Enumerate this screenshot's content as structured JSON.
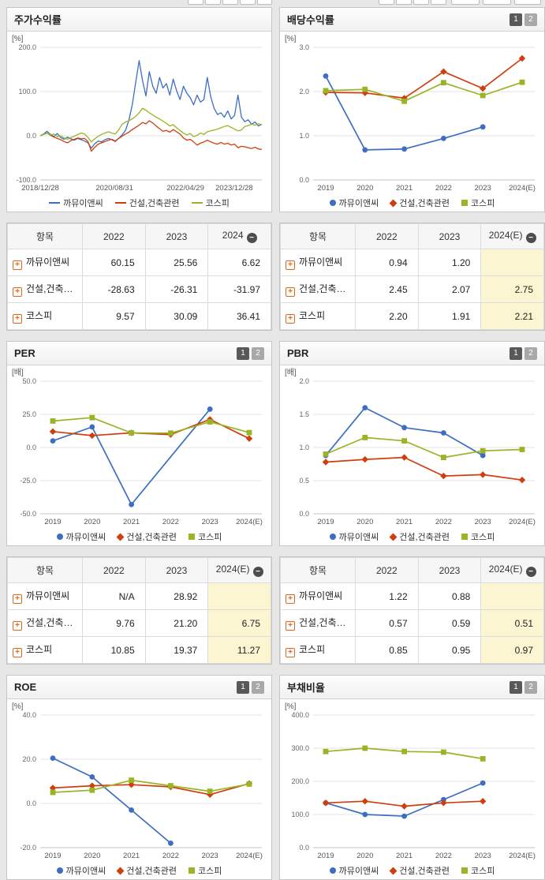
{
  "colors": {
    "blue": "#3d6ec2",
    "red": "#cf3e0f",
    "green": "#99b424",
    "estimate_bg": "#fbf5d2"
  },
  "icons": {
    "expand": "+",
    "collapse": "−"
  },
  "series_names": [
    "까뮤이앤씨",
    "건설,건축관련",
    "코스피"
  ],
  "chart_data": [
    {
      "id": "price-return",
      "type": "line",
      "title": "주가수익률",
      "unit": "[%]",
      "toggles": null,
      "x_tick_labels": [
        "2018/12/28",
        "2020/08/31",
        "2022/04/29",
        "2023/12/28"
      ],
      "x_tick_pos": [
        0,
        0.335,
        0.655,
        0.875
      ],
      "ylim": [
        -100,
        200
      ],
      "yticks": [
        200,
        100,
        0,
        -100
      ],
      "grid": true,
      "legend_position": "bottom",
      "series": [
        {
          "name": "까뮤이앤씨",
          "color": "blue",
          "marker": "none",
          "values": [
            0,
            4,
            10,
            3,
            -2,
            5,
            -4,
            -8,
            -3,
            -7,
            -10,
            -6,
            -9,
            -12,
            -16,
            -28,
            -18,
            -12,
            -14,
            -9,
            -6,
            -9,
            -13,
            -6,
            2,
            12,
            35,
            70,
            120,
            170,
            125,
            90,
            145,
            112,
            96,
            132,
            108,
            118,
            92,
            128,
            102,
            82,
            112,
            96,
            86,
            70,
            92,
            76,
            82,
            132,
            88,
            62,
            48,
            52,
            42,
            56,
            38,
            46,
            92,
            42,
            32,
            36,
            26,
            31,
            22,
            26
          ]
        },
        {
          "name": "건설,건축관련",
          "color": "red",
          "marker": "none",
          "values": [
            0,
            3,
            6,
            1,
            -3,
            -6,
            -9,
            -13,
            -16,
            -11,
            -8,
            -5,
            -7,
            -6,
            -13,
            -35,
            -26,
            -19,
            -16,
            -13,
            -10,
            -8,
            -12,
            -6,
            -1,
            4,
            8,
            14,
            19,
            24,
            30,
            27,
            34,
            29,
            22,
            16,
            10,
            12,
            8,
            14,
            9,
            4,
            -5,
            -10,
            -8,
            -14,
            -21,
            -17,
            -14,
            -10,
            -14,
            -17,
            -19,
            -15,
            -19,
            -17,
            -21,
            -19,
            -27,
            -24,
            -25,
            -27,
            -29,
            -26,
            -30,
            -31
          ]
        },
        {
          "name": "코스피",
          "color": "green",
          "marker": "none",
          "values": [
            0,
            3,
            6,
            2,
            4,
            -2,
            0,
            -5,
            -8,
            -4,
            -1,
            3,
            6,
            4,
            -4,
            -14,
            -7,
            -1,
            3,
            6,
            9,
            6,
            4,
            13,
            26,
            31,
            34,
            38,
            44,
            52,
            62,
            58,
            52,
            47,
            42,
            38,
            33,
            28,
            22,
            25,
            18,
            12,
            6,
            2,
            5,
            -2,
            1,
            6,
            3,
            9,
            11,
            13,
            15,
            18,
            21,
            23,
            19,
            15,
            11,
            13,
            21,
            23,
            26,
            24,
            27,
            25
          ]
        }
      ]
    },
    {
      "id": "dividend-yield",
      "type": "line",
      "title": "배당수익률",
      "unit": "[%]",
      "toggles": [
        "1",
        "2"
      ],
      "categories": [
        "2019",
        "2020",
        "2021",
        "2022",
        "2023",
        "2024(E)"
      ],
      "ylim": [
        0,
        3
      ],
      "yticks": [
        3,
        2,
        1,
        0
      ],
      "grid": true,
      "legend_position": "bottom",
      "series": [
        {
          "name": "까뮤이앤씨",
          "color": "blue",
          "marker": "circle",
          "values": [
            2.35,
            0.68,
            0.7,
            0.94,
            1.2,
            null
          ]
        },
        {
          "name": "건설,건축관련",
          "color": "red",
          "marker": "diamond",
          "values": [
            1.98,
            1.97,
            1.85,
            2.45,
            2.07,
            2.75
          ]
        },
        {
          "name": "코스피",
          "color": "green",
          "marker": "square",
          "values": [
            2.02,
            2.05,
            1.78,
            2.2,
            1.91,
            2.21
          ]
        }
      ]
    },
    {
      "id": "per",
      "type": "line",
      "title": "PER",
      "unit": "[배]",
      "toggles": [
        "1",
        "2"
      ],
      "categories": [
        "2019",
        "2020",
        "2021",
        "2022",
        "2023",
        "2024(E)"
      ],
      "ylim": [
        -50,
        50
      ],
      "yticks": [
        50,
        25,
        0,
        -25,
        -50
      ],
      "grid": true,
      "legend_position": "bottom",
      "series": [
        {
          "name": "까뮤이앤씨",
          "color": "blue",
          "marker": "circle",
          "values": [
            5,
            15.5,
            -43,
            null,
            28.92,
            null
          ]
        },
        {
          "name": "건설,건축관련",
          "color": "red",
          "marker": "diamond",
          "values": [
            12,
            9,
            11,
            9.76,
            21.2,
            6.75
          ]
        },
        {
          "name": "코스피",
          "color": "green",
          "marker": "square",
          "values": [
            20,
            22.5,
            11,
            10.85,
            19.37,
            11.27
          ]
        }
      ]
    },
    {
      "id": "pbr",
      "type": "line",
      "title": "PBR",
      "unit": "[배]",
      "toggles": [
        "1",
        "2"
      ],
      "categories": [
        "2019",
        "2020",
        "2021",
        "2022",
        "2023",
        "2024(E)"
      ],
      "ylim": [
        0,
        2
      ],
      "yticks": [
        2,
        1.5,
        1,
        0.5,
        0
      ],
      "grid": true,
      "legend_position": "bottom",
      "series": [
        {
          "name": "까뮤이앤씨",
          "color": "blue",
          "marker": "circle",
          "values": [
            0.88,
            1.6,
            1.3,
            1.22,
            0.88,
            null
          ]
        },
        {
          "name": "건설,건축관련",
          "color": "red",
          "marker": "diamond",
          "values": [
            0.78,
            0.82,
            0.85,
            0.57,
            0.59,
            0.51
          ]
        },
        {
          "name": "코스피",
          "color": "green",
          "marker": "square",
          "values": [
            0.9,
            1.15,
            1.1,
            0.85,
            0.95,
            0.97
          ]
        }
      ]
    },
    {
      "id": "roe",
      "type": "line",
      "title": "ROE",
      "unit": "[%]",
      "toggles": [
        "1",
        "2"
      ],
      "categories": [
        "2019",
        "2020",
        "2021",
        "2022",
        "2023",
        "2024(E)"
      ],
      "ylim": [
        -20,
        40
      ],
      "yticks": [
        40,
        20,
        0,
        -20
      ],
      "grid": true,
      "legend_position": "bottom",
      "series": [
        {
          "name": "까뮤이앤씨",
          "color": "blue",
          "marker": "circle",
          "values": [
            20.5,
            12,
            -3,
            -18,
            null,
            null
          ]
        },
        {
          "name": "건설,건축관련",
          "color": "red",
          "marker": "diamond",
          "values": [
            7,
            8,
            8.5,
            7.5,
            4,
            9
          ]
        },
        {
          "name": "코스피",
          "color": "green",
          "marker": "square",
          "values": [
            5,
            6,
            10.5,
            8,
            5.5,
            8.8
          ]
        }
      ]
    },
    {
      "id": "debt-ratio",
      "type": "line",
      "title": "부채비율",
      "unit": "[%]",
      "toggles": [
        "1",
        "2"
      ],
      "categories": [
        "2019",
        "2020",
        "2021",
        "2022",
        "2023",
        "2024(E)"
      ],
      "ylim": [
        0,
        400
      ],
      "yticks": [
        400,
        300,
        200,
        100,
        0
      ],
      "grid": true,
      "legend_position": "bottom",
      "series": [
        {
          "name": "까뮤이앤씨",
          "color": "blue",
          "marker": "circle",
          "values": [
            135,
            100,
            95,
            145,
            195,
            null
          ]
        },
        {
          "name": "건설,건축관련",
          "color": "red",
          "marker": "diamond",
          "values": [
            135,
            140,
            125,
            135,
            140,
            null
          ]
        },
        {
          "name": "코스피",
          "color": "green",
          "marker": "square",
          "values": [
            290,
            300,
            290,
            288,
            268,
            null
          ]
        }
      ]
    }
  ],
  "tables": [
    {
      "headers": [
        "항목",
        "2022",
        "2023",
        "2024"
      ],
      "highlight_last": false,
      "rows": [
        {
          "label": "까뮤이앤씨",
          "values": [
            "60.15",
            "25.56",
            "6.62"
          ]
        },
        {
          "label": "건설,건축…",
          "values": [
            "-28.63",
            "-26.31",
            "-31.97"
          ]
        },
        {
          "label": "코스피",
          "values": [
            "9.57",
            "30.09",
            "36.41"
          ]
        }
      ]
    },
    {
      "headers": [
        "항목",
        "2022",
        "2023",
        "2024(E)"
      ],
      "highlight_last": true,
      "rows": [
        {
          "label": "까뮤이앤씨",
          "values": [
            "0.94",
            "1.20",
            ""
          ]
        },
        {
          "label": "건설,건축…",
          "values": [
            "2.45",
            "2.07",
            "2.75"
          ]
        },
        {
          "label": "코스피",
          "values": [
            "2.20",
            "1.91",
            "2.21"
          ]
        }
      ]
    },
    {
      "headers": [
        "항목",
        "2022",
        "2023",
        "2024(E)"
      ],
      "highlight_last": true,
      "rows": [
        {
          "label": "까뮤이앤씨",
          "values": [
            "N/A",
            "28.92",
            ""
          ]
        },
        {
          "label": "건설,건축…",
          "values": [
            "9.76",
            "21.20",
            "6.75"
          ]
        },
        {
          "label": "코스피",
          "values": [
            "10.85",
            "19.37",
            "11.27"
          ]
        }
      ]
    },
    {
      "headers": [
        "항목",
        "2022",
        "2023",
        "2024(E)"
      ],
      "highlight_last": true,
      "rows": [
        {
          "label": "까뮤이앤씨",
          "values": [
            "1.22",
            "0.88",
            ""
          ]
        },
        {
          "label": "건설,건축…",
          "values": [
            "0.57",
            "0.59",
            "0.51"
          ]
        },
        {
          "label": "코스피",
          "values": [
            "0.85",
            "0.95",
            "0.97"
          ]
        }
      ]
    }
  ]
}
